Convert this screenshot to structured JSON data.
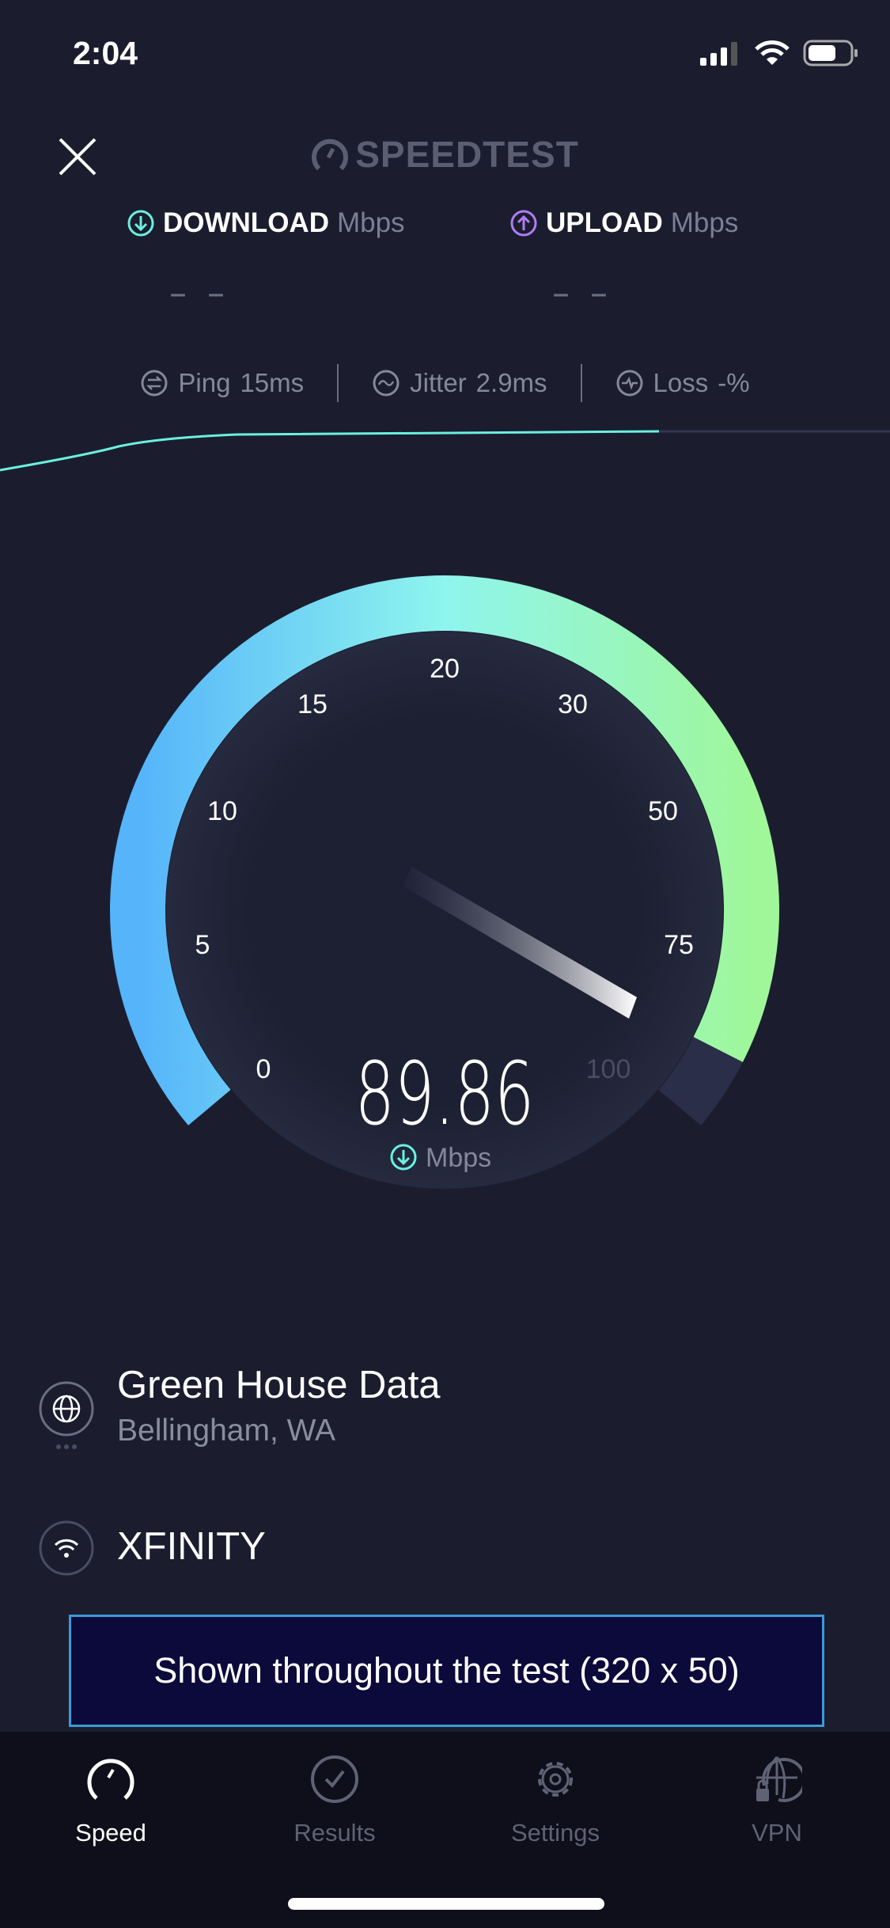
{
  "status_bar": {
    "time": "2:04"
  },
  "header": {
    "logo": "SPEEDTEST",
    "close_icon": "close-icon"
  },
  "download": {
    "label": "DOWNLOAD",
    "unit": "Mbps",
    "value": "– –",
    "color": "#6af0e0"
  },
  "upload": {
    "label": "UPLOAD",
    "unit": "Mbps",
    "value": "– –",
    "color": "#b07cf5"
  },
  "stats": {
    "ping": {
      "label": "Ping",
      "value": "15",
      "unit": "ms"
    },
    "jitter": {
      "label": "Jitter",
      "value": "2.9",
      "unit": "ms"
    },
    "loss": {
      "label": "Loss",
      "value": "-",
      "unit": "%"
    }
  },
  "gauge": {
    "ticks": [
      "0",
      "5",
      "10",
      "15",
      "20",
      "30",
      "50",
      "75",
      "100"
    ],
    "value": "89.86",
    "unit": "Mbps",
    "colors": {
      "start": "#55b4fa",
      "mid": "#8ff5ee",
      "end": "#9ff79a",
      "track": "#2a2e48"
    }
  },
  "server": {
    "name": "Green House Data",
    "location": "Bellingham, WA"
  },
  "provider": {
    "name": "XFINITY"
  },
  "ad": {
    "text": "Shown throughout the test (320 x 50)"
  },
  "tabs": [
    {
      "label": "Speed",
      "active": true
    },
    {
      "label": "Results"
    },
    {
      "label": "Settings"
    },
    {
      "label": "VPN"
    }
  ]
}
